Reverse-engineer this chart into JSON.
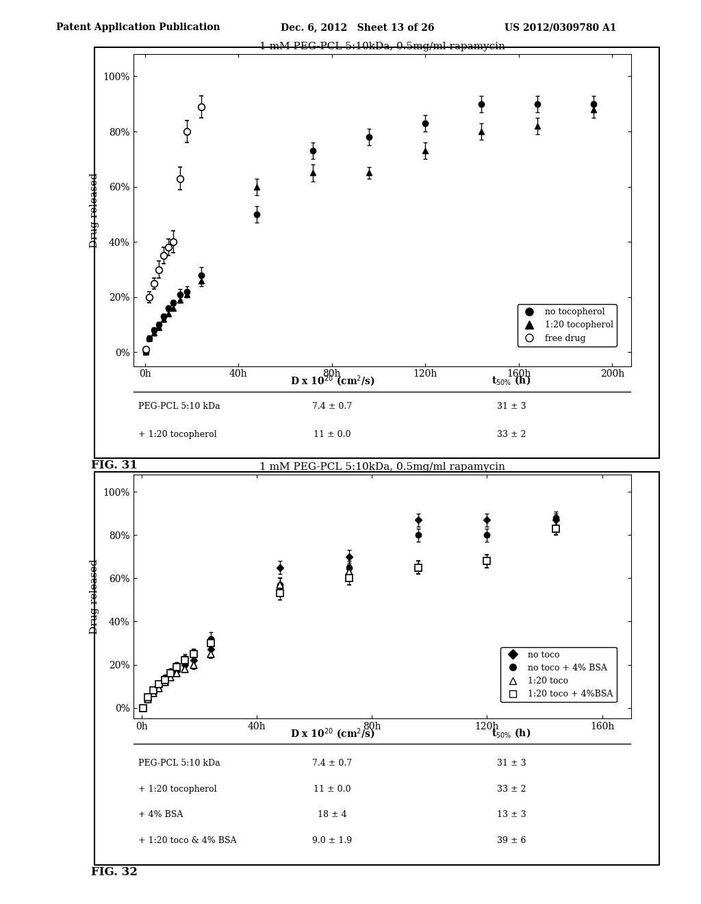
{
  "header_left": "Patent Application Publication",
  "header_mid": "Dec. 6, 2012   Sheet 13 of 26",
  "header_right": "US 2012/0309780 A1",
  "fig31_title": "1 mM PEG-PCL 5:10kDa, 0.5mg/ml rapamycin",
  "fig32_title": "1 mM PEG-PCL 5:10kDa, 0.5mg/ml rapamycin",
  "ylabel": "Drug released",
  "xtick_labels1": [
    "0h",
    "40h",
    "80h",
    "120h",
    "160h",
    "200h"
  ],
  "xtick_vals1": [
    0,
    40,
    80,
    120,
    160,
    200
  ],
  "xtick_labels2": [
    "0h",
    "40h",
    "80h",
    "120h",
    "160h"
  ],
  "xtick_vals2": [
    0,
    40,
    80,
    120,
    160
  ],
  "ytick_labels": [
    "0%",
    "20%",
    "40%",
    "60%",
    "80%",
    "100%"
  ],
  "ytick_vals": [
    0,
    20,
    40,
    60,
    80,
    100
  ],
  "fig31_caption": "FIG. 31",
  "fig32_caption": "FIG. 32",
  "fig31_no_toco_x": [
    0.5,
    2,
    4,
    6,
    8,
    10,
    12,
    15,
    18,
    24,
    48,
    72,
    96,
    120,
    144,
    168,
    192
  ],
  "fig31_no_toco_y": [
    0,
    5,
    8,
    10,
    13,
    16,
    18,
    21,
    22,
    28,
    50,
    73,
    78,
    83,
    90,
    90,
    90
  ],
  "fig31_no_toco_err": [
    0,
    1,
    1,
    1,
    1,
    1,
    1,
    2,
    2,
    3,
    3,
    3,
    3,
    3,
    3,
    3,
    3
  ],
  "fig31_toco_x": [
    0.5,
    2,
    4,
    6,
    8,
    10,
    12,
    15,
    18,
    24,
    48,
    72,
    96,
    120,
    144,
    168,
    192
  ],
  "fig31_toco_y": [
    0,
    5,
    7,
    9,
    12,
    14,
    16,
    19,
    21,
    26,
    60,
    65,
    65,
    73,
    80,
    82,
    88
  ],
  "fig31_toco_err": [
    0,
    1,
    1,
    1,
    1,
    1,
    1,
    1,
    1,
    2,
    3,
    3,
    2,
    3,
    3,
    3,
    3
  ],
  "fig31_free_x": [
    0.5,
    2,
    4,
    6,
    8,
    10,
    12,
    15,
    18,
    24
  ],
  "fig31_free_y": [
    1,
    20,
    25,
    30,
    35,
    38,
    40,
    63,
    80,
    89
  ],
  "fig31_free_err": [
    0,
    2,
    2,
    3,
    3,
    3,
    4,
    4,
    4,
    4
  ],
  "fig32_no_toco_x": [
    0.5,
    2,
    4,
    6,
    8,
    10,
    12,
    15,
    18,
    24,
    48,
    72,
    96,
    120,
    144
  ],
  "fig32_no_toco_y": [
    0,
    4,
    7,
    10,
    12,
    15,
    17,
    20,
    22,
    27,
    65,
    70,
    87,
    87,
    87
  ],
  "fig32_no_toco_err": [
    0,
    1,
    1,
    1,
    1,
    1,
    1,
    1,
    2,
    2,
    3,
    3,
    3,
    3,
    3
  ],
  "fig32_no_toco_bsa_x": [
    0.5,
    2,
    4,
    6,
    8,
    10,
    12,
    15,
    18,
    24,
    48,
    72,
    96,
    120,
    144
  ],
  "fig32_no_toco_bsa_y": [
    0,
    5,
    8,
    11,
    14,
    17,
    20,
    23,
    25,
    32,
    57,
    65,
    80,
    80,
    88
  ],
  "fig32_no_toco_bsa_err": [
    0,
    1,
    1,
    1,
    1,
    1,
    1,
    2,
    2,
    3,
    3,
    3,
    3,
    3,
    3
  ],
  "fig32_toco_x": [
    0.5,
    2,
    4,
    6,
    8,
    10,
    12,
    15,
    18,
    24,
    48,
    72,
    96,
    120,
    144
  ],
  "fig32_toco_y": [
    0,
    4,
    7,
    9,
    12,
    14,
    16,
    18,
    20,
    25,
    57,
    63,
    65,
    68,
    83
  ],
  "fig32_toco_err": [
    0,
    1,
    1,
    1,
    1,
    1,
    1,
    1,
    2,
    2,
    3,
    3,
    3,
    3,
    3
  ],
  "fig32_toco_bsa_x": [
    0.5,
    2,
    4,
    6,
    8,
    10,
    12,
    15,
    18,
    24,
    48,
    72,
    96,
    120,
    144
  ],
  "fig32_toco_bsa_y": [
    0,
    5,
    8,
    11,
    13,
    16,
    19,
    22,
    25,
    30,
    53,
    60,
    65,
    68,
    83
  ],
  "fig32_toco_bsa_err": [
    0,
    1,
    1,
    1,
    1,
    1,
    1,
    2,
    2,
    2,
    3,
    3,
    3,
    3,
    3
  ],
  "table1_col1": [
    "PEG-PCL 5:10 kDa",
    "+ 1:20 tocopherol"
  ],
  "table1_col2": [
    "7.4 ± 0.7",
    "11 ± 0.0"
  ],
  "table1_col3": [
    "31 ± 3",
    "33 ± 2"
  ],
  "table2_col1": [
    "PEG-PCL 5:10 kDa",
    "+ 1:20 tocopherol",
    "+ 4% BSA",
    "+ 1:20 toco & 4% BSA"
  ],
  "table2_col2": [
    "7.4 ± 0.7",
    "11 ± 0.0",
    "18 ± 4",
    "9.0 ± 1.9"
  ],
  "table2_col3": [
    "31 ± 3",
    "33 ± 2",
    "13 ± 3",
    "39 ± 6"
  ],
  "bg_color": "#ffffff",
  "plot_bg": "#ffffff",
  "text_color": "#000000"
}
